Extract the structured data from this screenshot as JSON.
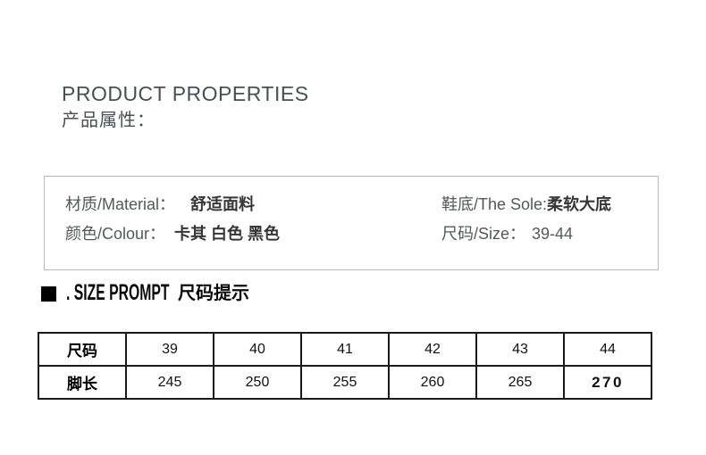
{
  "page": {
    "title_en": "PRODUCT PROPERTIES",
    "title_cn": "产品属性："
  },
  "properties_box": {
    "items": [
      {
        "label": "材质/Material：",
        "value": "舒适面料"
      },
      {
        "label": "颜色/Colour：",
        "value": "卡其 白色 黑色"
      },
      {
        "label": "鞋底/The Sole:",
        "value": "柔软大底"
      },
      {
        "label": "尺码/Size：",
        "value": "39-44"
      }
    ]
  },
  "size_prompt": {
    "icon": "black-square",
    "label_en": ". SIZE PROMPT",
    "label_cn": "尺码提示"
  },
  "size_table": {
    "rows": [
      {
        "label": "尺码",
        "cells": [
          "39",
          "40",
          "41",
          "42",
          "43",
          "44"
        ]
      },
      {
        "label": "脚长",
        "cells": [
          "245",
          "250",
          "255",
          "260",
          "265",
          "270"
        ]
      }
    ]
  },
  "colors": {
    "heading_gray": "#4b4e53",
    "label_gray": "#55585a",
    "value_dark": "#363638",
    "box_border": "#b8b8b8",
    "table_border": "#1a1a1a",
    "prompt_black": "#000000"
  }
}
